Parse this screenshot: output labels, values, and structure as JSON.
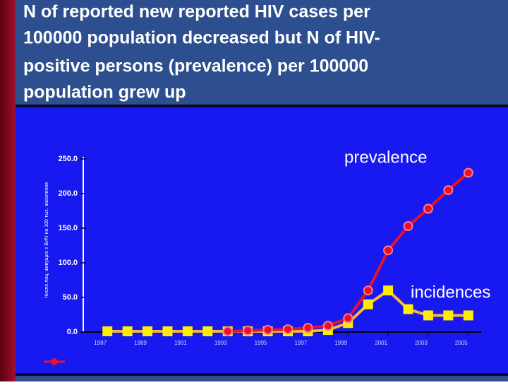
{
  "chart_data": {
    "type": "line",
    "title": [
      "N of  reported new reported HIV cases per",
      "100000 population decreased but  N of HIV-",
      "positive persons (prevalence)  per 100000",
      "population grew up"
    ],
    "ylabel": "Число лиц, живущих с ВИЧ на 100 тыс. населения",
    "x": [
      1987,
      1988,
      1989,
      1990,
      1991,
      1992,
      1993,
      1994,
      1995,
      1996,
      1997,
      1998,
      1999,
      2000,
      2001,
      2002,
      2003,
      2004,
      2005
    ],
    "series": [
      {
        "name": "prevalence",
        "color": "#e8102a",
        "values": [
          null,
          null,
          null,
          null,
          null,
          null,
          1,
          2,
          3,
          4,
          6,
          9,
          20,
          60,
          118,
          153,
          178,
          205,
          230
        ]
      },
      {
        "name": "incidences",
        "color": "#f5b63c",
        "values": [
          1,
          1,
          1,
          1,
          1,
          1,
          1,
          1,
          1,
          1,
          1,
          3,
          13,
          40,
          60,
          33,
          24,
          24,
          24
        ]
      }
    ],
    "xlim": [
      1986.5,
      2005.5
    ],
    "xticks": [
      1987,
      1989,
      1991,
      1993,
      1995,
      1997,
      1999,
      2001,
      2003,
      2005
    ],
    "ylim": [
      0,
      250
    ],
    "yticks": [
      {
        "value": 0,
        "label": "0.0"
      },
      {
        "value": 50,
        "label": "50.0"
      },
      {
        "value": 100,
        "label": "100.0"
      },
      {
        "value": 150,
        "label": "150.0"
      },
      {
        "value": 200,
        "label": "200.0"
      },
      {
        "value": 250,
        "label": "250.0"
      }
    ]
  }
}
